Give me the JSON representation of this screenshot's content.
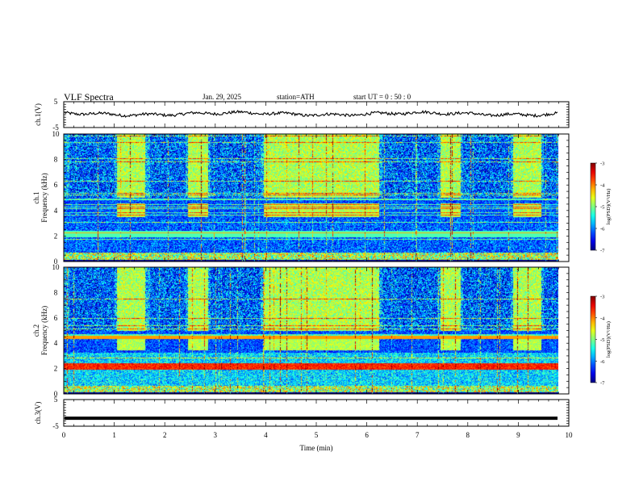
{
  "header": {
    "title": "VLF Spectra",
    "date": "Jan. 29, 2025",
    "station": "station=ATH",
    "start": "start UT =  0 : 50 : 0"
  },
  "chart_data": [
    {
      "type": "line",
      "panel": "ch1-voltage",
      "ylabel": "ch.1(V)",
      "ylim": [
        -5,
        5
      ],
      "yticks": [
        "5",
        "-5"
      ],
      "xlim": [
        0,
        10
      ],
      "series": [
        {
          "values_note": "",
          "level": 0.3
        }
      ],
      "trace_color": "#000000"
    },
    {
      "type": "heatmap",
      "panel": "ch1-spectrogram",
      "ylabel": "ch.1\nFrequency (kHz)",
      "ylim": [
        0,
        10
      ],
      "yticks": [
        "0",
        "2",
        "4",
        "6",
        "8",
        "10"
      ],
      "xlim": [
        0,
        9.8
      ],
      "colorbar": {
        "label": "log(PSD)(V²/Hz)",
        "range": [
          -7,
          -3
        ],
        "ticks": [
          "-3",
          "-4",
          "-5",
          "-6",
          "-7"
        ]
      },
      "bursts_min": [
        [
          1.05,
          1.6
        ],
        [
          2.45,
          2.85
        ],
        [
          3.95,
          6.25
        ],
        [
          7.45,
          7.85
        ],
        [
          8.9,
          9.45
        ]
      ]
    },
    {
      "type": "heatmap",
      "panel": "ch2-spectrogram",
      "ylabel": "ch.2\nFrequency (kHz)",
      "ylim": [
        0,
        10
      ],
      "yticks": [
        "0",
        "2",
        "4",
        "6",
        "8",
        "10"
      ],
      "xlim": [
        0,
        9.8
      ],
      "colorbar": {
        "label": "log(PSD)(V²/Hz)",
        "range": [
          -7,
          -3
        ],
        "ticks": [
          "-3",
          "-4",
          "-5",
          "-6",
          "-7"
        ]
      },
      "bursts_min": [
        [
          1.05,
          1.6
        ],
        [
          2.45,
          2.85
        ],
        [
          3.95,
          6.25
        ],
        [
          7.45,
          7.85
        ],
        [
          8.9,
          9.45
        ]
      ]
    },
    {
      "type": "line",
      "panel": "ch3-voltage",
      "ylabel": "ch.3(V)",
      "ylim": [
        -5,
        5
      ],
      "yticks": [
        "5",
        "-5"
      ],
      "xlim": [
        0,
        10
      ],
      "series": [
        {
          "level": -2
        }
      ],
      "trace_color": "#000000"
    }
  ],
  "xaxis": {
    "label": "Time (min)",
    "ticks": [
      "0",
      "1",
      "2",
      "3",
      "4",
      "5",
      "6",
      "7",
      "8",
      "9",
      "10"
    ]
  }
}
